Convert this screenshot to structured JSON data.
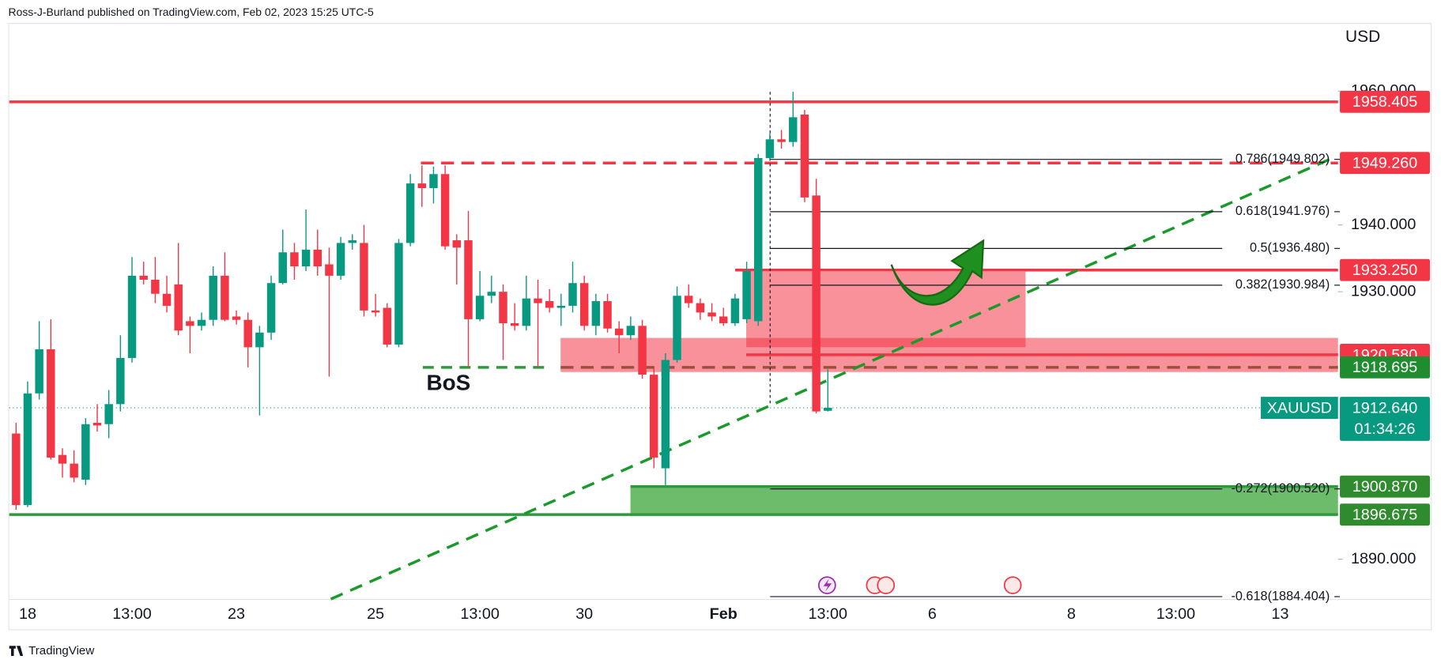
{
  "header": "Ross-J-Burland published on TradingView.com, Feb 02, 2023 15:25 UTC-5",
  "footer": "TradingView",
  "chart_data": {
    "type": "candlestick",
    "currency": "USD",
    "annotation": "BoS",
    "up_color": "#089981",
    "down_color": "#f23645",
    "categories": [
      null,
      "18",
      null,
      null,
      null,
      null,
      null,
      null,
      null,
      null,
      "13:00",
      null,
      null,
      null,
      null,
      null,
      null,
      null,
      null,
      "23",
      null,
      null,
      null,
      null,
      null,
      null,
      null,
      null,
      null,
      null,
      null,
      "25",
      null,
      null,
      null,
      null,
      null,
      null,
      null,
      null,
      "13:00",
      null,
      null,
      null,
      null,
      null,
      null,
      null,
      null,
      "30",
      null,
      null,
      null,
      null,
      null,
      null,
      null,
      null,
      null,
      null,
      null,
      "Feb",
      null,
      null,
      null,
      null,
      null,
      null,
      null,
      null,
      "13:00",
      null,
      null,
      null,
      null,
      null,
      null,
      null,
      null,
      "6",
      null,
      null,
      null,
      null,
      null,
      null,
      null,
      null,
      null,
      null,
      null,
      "8",
      null,
      null,
      null,
      null,
      null,
      null,
      null,
      null,
      "13:00",
      null,
      null,
      null,
      null,
      null,
      null,
      null,
      null,
      "13"
    ],
    "open": [
      1908.8,
      1898.1,
      1914.8,
      1921.4,
      1905.6,
      1904.3,
      1901.9,
      1910.4,
      1910.2,
      1913.2,
      1920.1,
      1932.4,
      1931.8,
      1929.7,
      1931.1,
      1925.6,
      1924.9,
      1925.8,
      1932.4,
      1926.3,
      1925.8,
      1921.7,
      1923.9,
      1931.3,
      1935.9,
      1933.8,
      1936.3,
      1934.1,
      1932.4,
      1937.3,
      1937.3,
      1927.2,
      1927.6,
      1922.1,
      1937.3,
      1946.2,
      1945.5,
      1947.6,
      1937.7,
      1937.7,
      1925.9,
      1929.4,
      1930.0,
      1925.3,
      1924.9,
      1929.0,
      1928.6,
      1927.6,
      1927.9,
      1931.3,
      1924.9,
      1928.6,
      1924.5,
      1923.5,
      1924.9,
      1917.6,
      1903.6,
      1919.8,
      1929.4,
      1928.3,
      1926.9,
      1926.3,
      1925.3,
      1925.9,
      1925.6,
      1950.0,
      1952.8,
      1952.4,
      1956.5,
      1944.4,
      1912.2,
      null,
      null,
      null,
      null,
      null,
      null,
      null,
      null,
      null,
      null,
      null,
      null,
      null,
      null,
      null,
      null,
      null,
      null,
      null,
      null,
      null,
      null,
      null,
      null,
      null,
      null,
      null,
      null,
      null,
      null,
      null,
      null,
      null,
      null,
      null,
      null,
      null,
      null,
      null
    ],
    "high": [
      1910.4,
      1916.6,
      1925.6,
      1925.9,
      1906.6,
      1906.3,
      1911.1,
      1913.2,
      1915.3,
      1923.5,
      1935.2,
      1934.5,
      1935.2,
      1932.4,
      1937.3,
      1926.3,
      1926.9,
      1933.8,
      1935.9,
      1927.2,
      1926.9,
      1924.9,
      1932.4,
      1939.3,
      1937.3,
      1942.3,
      1939.3,
      1936.6,
      1938.2,
      1938.6,
      1940.0,
      1929.7,
      1928.3,
      1937.9,
      1947.6,
      1948.9,
      1948.7,
      1948.9,
      1938.6,
      1942.1,
      1933.1,
      1932.4,
      1931.1,
      1928.3,
      1932.4,
      1931.8,
      1930.4,
      1929.7,
      1934.5,
      1932.4,
      1929.7,
      1929.7,
      1925.6,
      1926.3,
      1925.8,
      1918.7,
      1920.8,
      1930.8,
      1931.1,
      1929.0,
      1928.3,
      1927.6,
      1929.7,
      1934.5,
      1950.6,
      1953.7,
      1954.2,
      1959.9,
      1957.2,
      1946.9,
      1918.4,
      null,
      null,
      null,
      null,
      null,
      null,
      null,
      null,
      null,
      null,
      null,
      null,
      null,
      null,
      null,
      null,
      null,
      null,
      null,
      null,
      null,
      null,
      null,
      null,
      null,
      null,
      null,
      null,
      null,
      null,
      null,
      null,
      null,
      null,
      null,
      null,
      null,
      null,
      null
    ],
    "low": [
      1897.4,
      1897.8,
      1913.9,
      1904.9,
      1902.2,
      1901.5,
      1901.1,
      1909.1,
      1908.1,
      1912.1,
      1919.4,
      1931.1,
      1928.3,
      1926.9,
      1923.5,
      1920.8,
      1924.2,
      1924.9,
      1925.6,
      1925.1,
      1918.7,
      1911.5,
      1922.8,
      1931.1,
      1931.8,
      1933.1,
      1932.4,
      1917.3,
      1931.8,
      1936.3,
      1926.3,
      1926.3,
      1921.7,
      1921.7,
      1936.8,
      1942.7,
      1943.2,
      1936.3,
      1931.1,
      1918.7,
      1925.6,
      1928.3,
      1919.8,
      1924.2,
      1924.2,
      1918.7,
      1926.9,
      1924.9,
      1926.9,
      1924.2,
      1923.5,
      1923.9,
      1920.8,
      1922.8,
      1917.0,
      1903.6,
      1901.1,
      1919.4,
      1927.6,
      1925.8,
      1925.6,
      1924.9,
      1924.9,
      1925.3,
      1924.9,
      1949.6,
      1951.4,
      1951.7,
      1943.4,
      1911.8,
      1912.1,
      null,
      null,
      null,
      null,
      null,
      null,
      null,
      null,
      null,
      null,
      null,
      null,
      null,
      null,
      null,
      null,
      null,
      null,
      null,
      null,
      null,
      null,
      null,
      null,
      null,
      null,
      null,
      null,
      null,
      null,
      null,
      null,
      null,
      null,
      null,
      null,
      null,
      null,
      null
    ],
    "close": [
      1898.1,
      1914.8,
      1921.4,
      1905.2,
      1904.3,
      1902.2,
      1910.2,
      1910.0,
      1913.2,
      1920.1,
      1932.4,
      1931.8,
      1929.7,
      1927.9,
      1924.2,
      1924.9,
      1925.8,
      1932.4,
      1925.8,
      1925.8,
      1921.7,
      1923.9,
      1931.3,
      1935.9,
      1933.8,
      1936.3,
      1933.8,
      1932.4,
      1937.3,
      1937.7,
      1927.2,
      1926.9,
      1922.1,
      1937.3,
      1946.2,
      1945.5,
      1947.6,
      1936.8,
      1936.6,
      1925.9,
      1929.4,
      1930.0,
      1925.3,
      1924.9,
      1929.0,
      1928.3,
      1927.6,
      1927.9,
      1931.3,
      1924.9,
      1928.6,
      1924.5,
      1923.5,
      1924.9,
      1917.6,
      1905.2,
      1919.8,
      1929.4,
      1928.3,
      1926.9,
      1926.3,
      1925.3,
      1929.0,
      1933.1,
      1950.0,
      1952.8,
      1952.4,
      1956.1,
      1944.1,
      1912.1,
      1912.64,
      null,
      null,
      null,
      null,
      null,
      null,
      null,
      null,
      null,
      null,
      null,
      null,
      null,
      null,
      null,
      null,
      null,
      null,
      null,
      null,
      null,
      null,
      null,
      null,
      null,
      null,
      null,
      null,
      null,
      null,
      null,
      null,
      null,
      null,
      null,
      null,
      null,
      null,
      null
    ],
    "ylim": [
      1884.05,
      1970.2
    ],
    "yticks": [
      {
        "value": 1960,
        "label": "1960.000"
      },
      {
        "value": 1940,
        "label": "1940.000"
      },
      {
        "value": 1930,
        "label": "1930.000"
      },
      {
        "value": 1890,
        "label": "1890.000"
      }
    ],
    "levels": [
      {
        "value": 1958.405,
        "label": "1958.405",
        "color": "#f23645",
        "tag_color": "#f23645"
      },
      {
        "value": 1949.26,
        "label": "1949.260",
        "color": "#f23645",
        "tag_color": "#f23645",
        "style": "dashed"
      },
      {
        "value": 1933.25,
        "label": "1933.250",
        "color": "#f23645",
        "tag_color": "#f23645"
      },
      {
        "value": 1920.58,
        "label": "1920.580",
        "color": "#f23645",
        "tag_color": "#f23645"
      },
      {
        "value": 1918.695,
        "label": "1918.695",
        "color": "#9c4f3c",
        "tag_color": "#1e8c2f",
        "style": "dashed"
      },
      {
        "value": 1900.87,
        "label": "1900.870",
        "color": "#2e9a3c",
        "tag_color": "#2e8b2e"
      },
      {
        "value": 1896.675,
        "label": "1896.675",
        "color": "#2e9a3c",
        "tag_color": "#2e8b2e"
      }
    ],
    "zones": [
      {
        "low": 1918.0,
        "high": 1923.1,
        "color": "rgba(242,54,69,0.55)"
      },
      {
        "low": 1921.7,
        "high": 1933.0,
        "color": "rgba(242,54,69,0.55)"
      },
      {
        "low": 1896.7,
        "high": 1900.8,
        "color": "rgba(46,160,46,0.7)"
      }
    ],
    "fib_levels": [
      {
        "value": 1949.802,
        "label": "0.786(1949.802)"
      },
      {
        "value": 1941.976,
        "label": "0.618(1941.976)"
      },
      {
        "value": 1936.48,
        "label": "0.5(1936.480)"
      },
      {
        "value": 1930.984,
        "label": "0.382(1930.984)"
      },
      {
        "value": 1900.52,
        "label": "-0.272(1900.520)"
      },
      {
        "value": 1884.404,
        "label": "-0.618(1884.404)"
      }
    ],
    "last_price": {
      "symbol": "XAUUSD",
      "value": 1912.64,
      "label": "1912.640",
      "countdown": "01:34:26",
      "color": "#089981"
    }
  }
}
